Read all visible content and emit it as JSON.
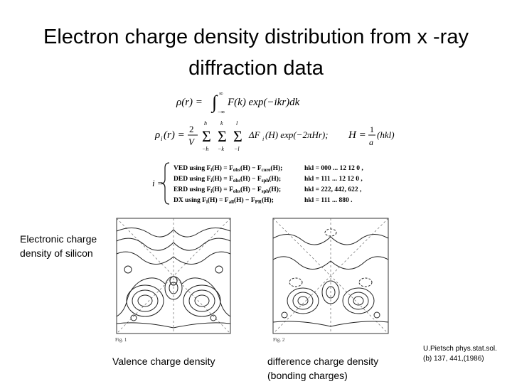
{
  "slide": {
    "title": "Electron charge density distribution from  x -ray diffraction data",
    "equations": {
      "rho_integral": "ρ(r) = ∫ F(k) exp(−ikr)dk",
      "rho_sum": "ρᵢ(r) = (2/V) Σ Σ Σ ΔFᵢ(H) exp(−2πHr);",
      "h_def": "H = (1/a)(hkl)",
      "cases": [
        "VED using  Fᵢ(H) = F_obs(H) − F_core(H);  hkl = 000 ... 12 12 0 ,",
        "DED using  Fᵢ(H) = F_obs(H) − F_sph(H);  hkl = 111 ... 12 12 0 ,",
        "ERD using  Fᵢ(H) = F_obs(H) − F_sph(H);  hkl = 222, 442, 622 ,",
        "DX  using  Fᵢ(H) = F_all(H) − F_PR(H);  hkl = 111 ... 880 ."
      ],
      "index_var": "i ="
    },
    "side_label": "Electronic charge density of silicon",
    "figures": [
      {
        "label": "Fig. 1",
        "caption": "Valence charge density"
      },
      {
        "label": "Fig. 2",
        "caption": "difference charge density (bonding charges)"
      }
    ],
    "reference": "U.Pietsch phys.stat.sol.(b) 137, 441,(1986)"
  }
}
